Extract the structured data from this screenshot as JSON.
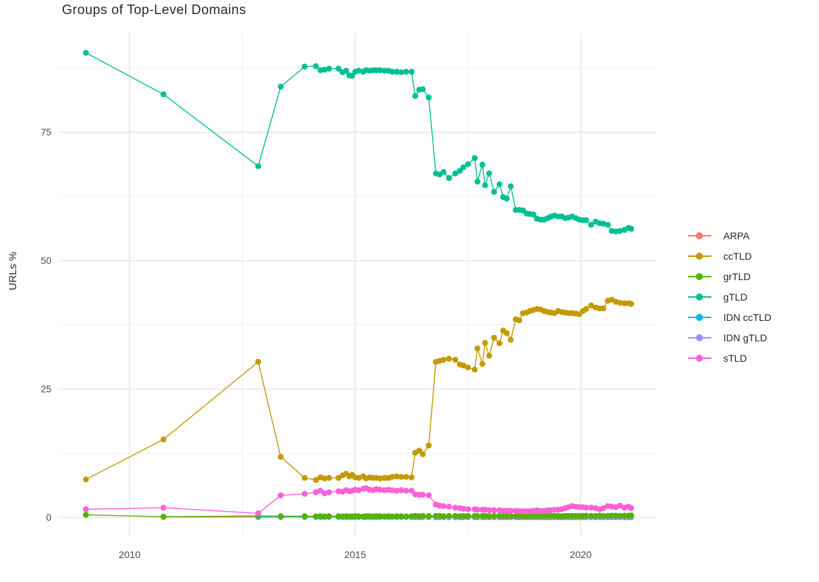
{
  "chart_data": {
    "type": "line",
    "title": "Groups of Top-Level Domains",
    "xlabel": "",
    "ylabel": "URLs %",
    "x_ticks": [
      "2010",
      "2015",
      "2020"
    ],
    "x_tick_values": [
      2010,
      2015,
      2020
    ],
    "y_ticks": [
      "0",
      "25",
      "50",
      "75"
    ],
    "y_tick_values": [
      0,
      25,
      50,
      75
    ],
    "xlim": [
      2008.42,
      2021.68
    ],
    "ylim": [
      -3.8,
      94.2
    ],
    "grid": "major+minor",
    "legend_position": "right",
    "x": [
      2009.03,
      2010.75,
      2012.85,
      2013.35,
      2013.88,
      2014.13,
      2014.23,
      2014.32,
      2014.42,
      2014.63,
      2014.72,
      2014.8,
      2014.87,
      2014.93,
      2015.0,
      2015.08,
      2015.18,
      2015.24,
      2015.32,
      2015.4,
      2015.47,
      2015.55,
      2015.65,
      2015.74,
      2015.82,
      2015.92,
      2016.02,
      2016.13,
      2016.25,
      2016.33,
      2016.42,
      2016.5,
      2016.63,
      2016.79,
      2016.87,
      2016.96,
      2017.08,
      2017.22,
      2017.32,
      2017.4,
      2017.5,
      2017.65,
      2017.71,
      2017.82,
      2017.88,
      2017.97,
      2018.08,
      2018.2,
      2018.28,
      2018.36,
      2018.45,
      2018.56,
      2018.64,
      2018.72,
      2018.8,
      2018.87,
      2018.95,
      2019.03,
      2019.11,
      2019.19,
      2019.27,
      2019.34,
      2019.42,
      2019.5,
      2019.58,
      2019.66,
      2019.73,
      2019.81,
      2019.89,
      2019.97,
      2020.05,
      2020.12,
      2020.23,
      2020.33,
      2020.42,
      2020.5,
      2020.6,
      2020.69,
      2020.78,
      2020.87,
      2020.97,
      2021.06,
      2021.12
    ],
    "series": [
      {
        "name": "ARPA",
        "color": "#F8766D",
        "x_start_index": 1,
        "values": [
          0.1,
          0.1
        ]
      },
      {
        "name": "ccTLD",
        "color": "#C49A00",
        "x_start_index": 0,
        "values": [
          7.4,
          15.2,
          30.3,
          11.8,
          7.7,
          7.3,
          7.8,
          7.6,
          7.7,
          7.7,
          8.2,
          8.5,
          8.0,
          8.3,
          7.8,
          7.7,
          8.0,
          7.6,
          7.8,
          7.7,
          7.7,
          7.6,
          7.7,
          7.7,
          7.9,
          8.0,
          7.9,
          7.9,
          7.8,
          12.6,
          13.0,
          12.3,
          14.0,
          30.3,
          30.5,
          30.7,
          30.9,
          30.7,
          29.8,
          29.6,
          29.2,
          28.8,
          32.9,
          29.9,
          34.0,
          31.5,
          35.0,
          33.9,
          36.4,
          35.9,
          34.6,
          38.6,
          38.4,
          39.8,
          39.9,
          40.2,
          40.4,
          40.6,
          40.5,
          40.2,
          40.0,
          39.9,
          39.8,
          40.2,
          40.0,
          39.9,
          39.8,
          39.8,
          39.7,
          39.6,
          40.2,
          40.6,
          41.3,
          40.9,
          40.7,
          40.7,
          42.2,
          42.4,
          42.0,
          41.8,
          41.7,
          41.7,
          41.6
        ]
      },
      {
        "name": "grTLD",
        "color": "#53B400",
        "x_start_index": 0,
        "values": [
          0.5,
          0.15,
          0.3,
          0.25,
          0.25,
          0.2,
          0.25,
          0.2,
          0.25,
          0.25,
          0.2,
          0.25,
          0.2,
          0.2,
          0.25,
          0.25,
          0.2,
          0.25,
          0.25,
          0.2,
          0.25,
          0.25,
          0.2,
          0.25,
          0.2,
          0.25,
          0.25,
          0.2,
          0.25,
          0.3,
          0.25,
          0.3,
          0.3,
          0.3,
          0.3,
          0.25,
          0.3,
          0.3,
          0.25,
          0.3,
          0.3,
          0.3,
          0.25,
          0.3,
          0.3,
          0.25,
          0.3,
          0.3,
          0.25,
          0.3,
          0.3,
          0.3,
          0.3,
          0.3,
          0.25,
          0.3,
          0.3,
          0.3,
          0.3,
          0.25,
          0.3,
          0.3,
          0.3,
          0.3,
          0.25,
          0.3,
          0.3,
          0.3,
          0.3,
          0.3,
          0.3,
          0.35,
          0.3,
          0.3,
          0.35,
          0.3,
          0.3,
          0.35,
          0.35,
          0.3,
          0.35,
          0.35,
          0.4
        ]
      },
      {
        "name": "gTLD",
        "color": "#00C094",
        "x_start_index": 0,
        "values": [
          90.5,
          82.4,
          68.4,
          83.9,
          87.8,
          87.9,
          87.1,
          87.2,
          87.4,
          87.4,
          86.7,
          87.0,
          86.1,
          86.0,
          86.8,
          87.0,
          86.8,
          87.1,
          87.0,
          87.1,
          87.1,
          87.1,
          87.0,
          87.0,
          86.8,
          86.8,
          86.7,
          86.8,
          86.8,
          82.1,
          83.3,
          83.4,
          81.8,
          67.0,
          66.8,
          67.3,
          66.1,
          67.0,
          67.5,
          68.2,
          68.8,
          70.0,
          65.4,
          68.7,
          64.7,
          67.0,
          63.4,
          64.9,
          62.4,
          62.1,
          64.5,
          59.9,
          59.9,
          59.8,
          59.2,
          59.1,
          59.0,
          58.2,
          58.0,
          58.0,
          58.3,
          58.6,
          58.8,
          58.6,
          58.6,
          58.3,
          58.4,
          58.6,
          58.3,
          58.0,
          57.9,
          57.9,
          57.0,
          57.6,
          57.3,
          57.2,
          57.0,
          55.8,
          55.7,
          55.8,
          56.0,
          56.4,
          56.2
        ]
      },
      {
        "name": "IDN ccTLD",
        "color": "#00B6EB",
        "x_start_index": 2,
        "values": [
          0.1,
          0.1,
          0.1,
          0.1,
          0.1,
          0.1,
          0.1,
          0.1,
          0.1,
          0.1,
          0.1,
          0.1,
          0.1,
          0.1,
          0.1,
          0.1,
          0.1,
          0.1,
          0.1,
          0.1,
          0.1,
          0.1,
          0.1,
          0.1,
          0.1,
          0.1,
          0.1,
          0.1,
          0.1,
          0.1,
          0.1,
          0.1,
          0.1,
          0.1,
          0.1,
          0.1,
          0.1,
          0.1,
          0.1,
          0.1,
          0.1,
          0.1,
          0.1,
          0.1,
          0.1,
          0.1,
          0.1,
          0.1,
          0.1,
          0.1,
          0.1,
          0.1,
          0.1,
          0.1,
          0.1,
          0.1,
          0.1,
          0.1,
          0.1,
          0.1,
          0.1,
          0.1,
          0.1,
          0.1,
          0.1,
          0.1,
          0.1,
          0.1,
          0.1,
          0.1,
          0.1,
          0.1,
          0.1,
          0.1,
          0.1,
          0.1,
          0.1,
          0.1,
          0.1,
          0.1,
          0.1
        ]
      },
      {
        "name": "IDN gTLD",
        "color": "#A58AFF",
        "x_start_index": 29,
        "values": [
          0.02,
          0.02,
          0.02,
          0.02,
          0.02,
          0.02,
          0.02,
          0.02,
          0.02,
          0.02,
          0.02,
          0.02,
          0.02,
          0.02,
          0.02,
          0.02,
          0.02,
          0.02,
          0.02,
          0.02,
          0.02,
          0.02,
          0.02,
          0.02,
          0.02,
          0.02,
          0.02,
          0.02,
          0.02,
          0.02,
          0.02,
          0.02,
          0.02,
          0.02,
          0.02,
          0.02,
          0.02,
          0.02,
          0.02,
          0.02,
          0.02,
          0.02,
          0.02,
          0.02,
          0.02,
          0.02,
          0.02,
          0.02,
          0.02,
          0.02,
          0.02,
          0.02,
          0.02,
          0.02
        ]
      },
      {
        "name": "sTLD",
        "color": "#FB61D7",
        "x_start_index": 0,
        "values": [
          1.6,
          1.9,
          0.8,
          4.3,
          4.6,
          4.9,
          5.2,
          4.7,
          4.9,
          5.1,
          5.0,
          5.3,
          5.1,
          5.2,
          5.4,
          5.3,
          5.6,
          5.7,
          5.4,
          5.3,
          5.5,
          5.4,
          5.3,
          5.4,
          5.3,
          5.2,
          5.3,
          5.2,
          5.2,
          4.5,
          4.4,
          4.4,
          4.3,
          2.5,
          2.3,
          2.2,
          2.1,
          1.9,
          1.8,
          1.7,
          1.6,
          1.6,
          1.5,
          1.5,
          1.5,
          1.4,
          1.4,
          1.4,
          1.3,
          1.3,
          1.3,
          1.3,
          1.2,
          1.2,
          1.2,
          1.2,
          1.3,
          1.4,
          1.3,
          1.3,
          1.4,
          1.4,
          1.5,
          1.5,
          1.6,
          1.8,
          2.0,
          2.2,
          2.1,
          2.0,
          2.0,
          1.9,
          1.9,
          1.8,
          1.6,
          1.8,
          2.2,
          2.1,
          2.0,
          2.3,
          1.9,
          2.1,
          1.8
        ]
      }
    ]
  }
}
